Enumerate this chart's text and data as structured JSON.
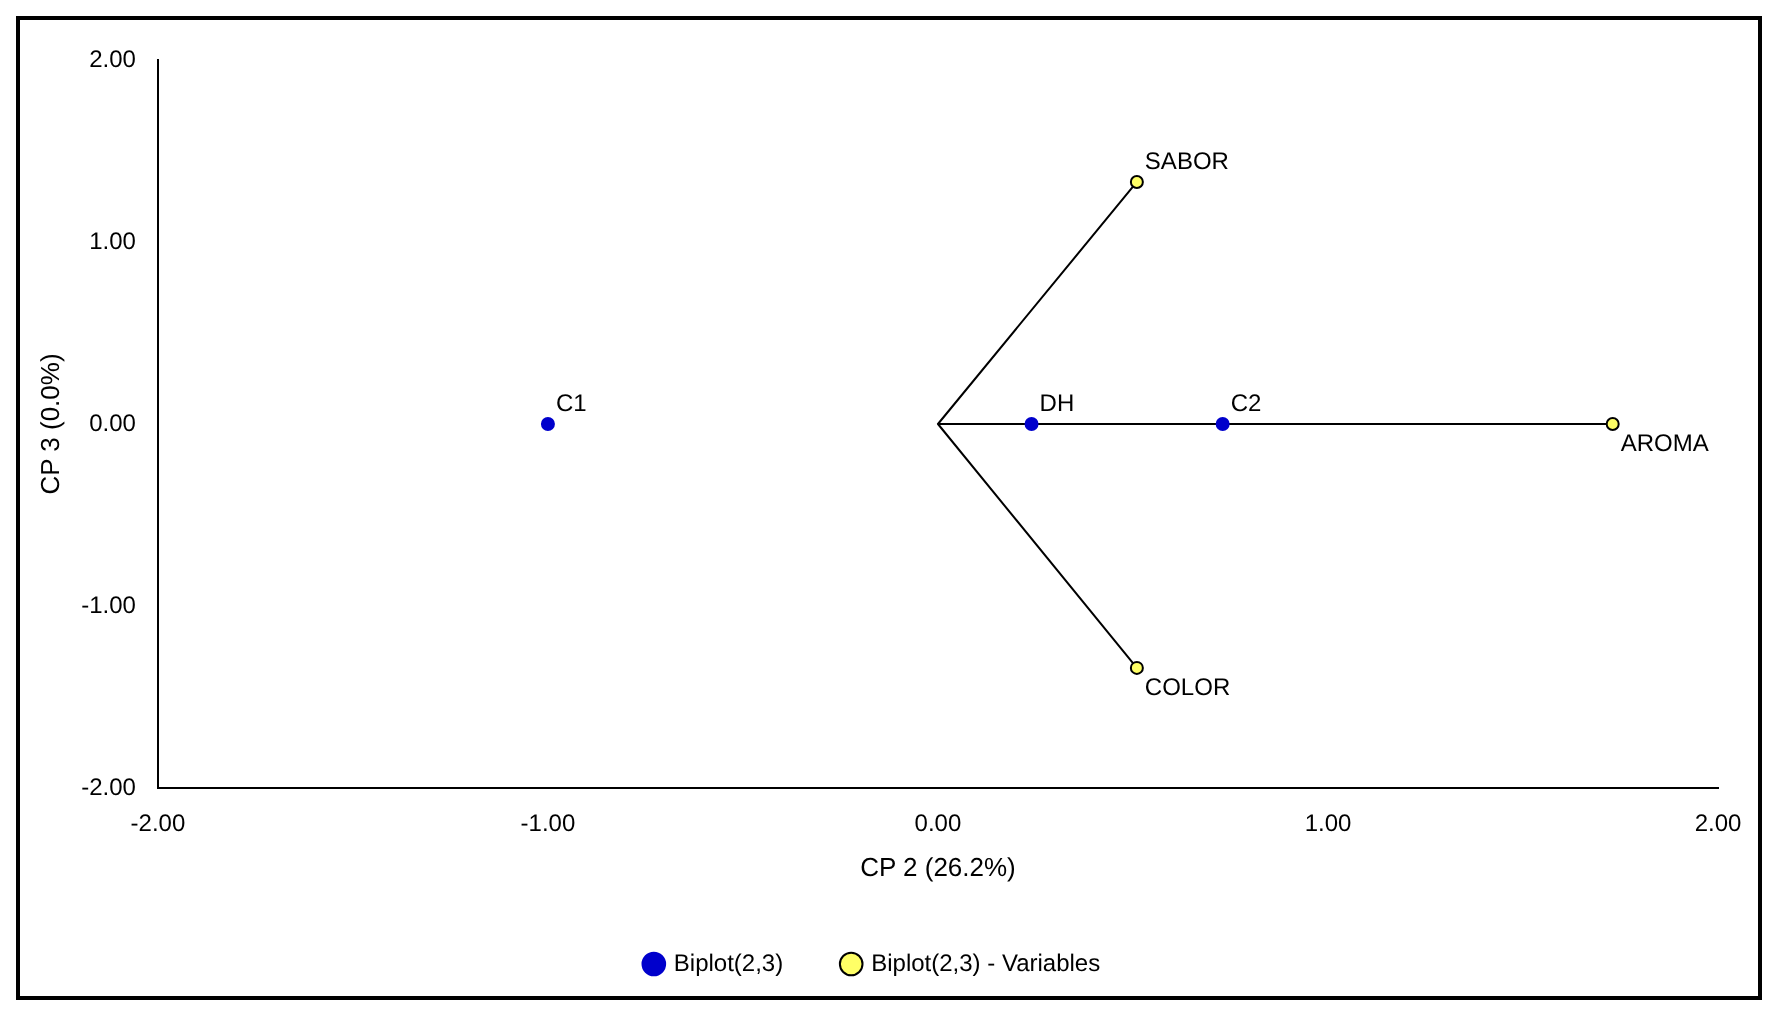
{
  "chart_data": {
    "type": "scatter",
    "xlabel": "CP 2 (26.2%)",
    "ylabel": "CP 3 (0.0%)",
    "xlim": [
      -2,
      2
    ],
    "ylim": [
      -2,
      2
    ],
    "xticks": [
      {
        "value": -2,
        "label": "-2.00"
      },
      {
        "value": -1,
        "label": "-1.00"
      },
      {
        "value": 0,
        "label": "0.00"
      },
      {
        "value": 1,
        "label": "1.00"
      },
      {
        "value": 2,
        "label": "2.00"
      }
    ],
    "yticks": [
      {
        "value": -2,
        "label": "-2.00"
      },
      {
        "value": -1,
        "label": "-1.00"
      },
      {
        "value": 0,
        "label": "0.00"
      },
      {
        "value": 1,
        "label": "1.00"
      },
      {
        "value": 2,
        "label": "2.00"
      }
    ],
    "grid": false,
    "legend": "bottom",
    "marker": "circle",
    "series": [
      {
        "name": "Biplot(2,3)",
        "color": "#0000cc",
        "x": [
          -1.0,
          0.24,
          0.73
        ],
        "values": [
          0,
          0,
          0
        ]
      },
      {
        "name": "Biplot(2,3) - Variables",
        "type": "line",
        "color": "#000000",
        "colors": [
          "#ffff66",
          "#ffff66",
          "#ffff66",
          "#ffff66",
          "#ffff66"
        ],
        "x": [
          0.51,
          0,
          1.73,
          0,
          0.51
        ],
        "values": [
          1.33,
          0,
          0,
          0,
          -1.34
        ]
      }
    ],
    "annotations": [
      {
        "text": "C1",
        "x": -1.0,
        "y": 0
      },
      {
        "text": "DH",
        "x": 0.24,
        "y": 0
      },
      {
        "text": "C2",
        "x": 0.73,
        "y": 0
      },
      {
        "text": "SABOR",
        "x": 0.51,
        "y": 1.33
      },
      {
        "text": "AROMA",
        "x": 1.73,
        "y": 0
      },
      {
        "text": "COLOR",
        "x": 0.51,
        "y": -1.34
      }
    ]
  }
}
